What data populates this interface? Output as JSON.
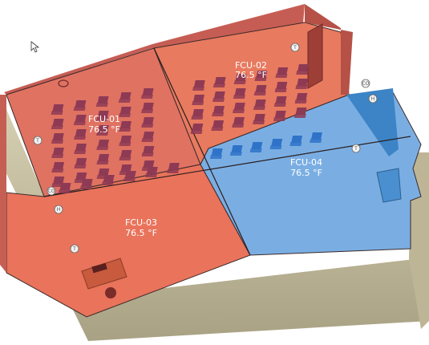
{
  "zones": [
    {
      "id": "fcu-01",
      "name": "FCU-01",
      "temp": "76.5 °F",
      "mode": "heating"
    },
    {
      "id": "fcu-02",
      "name": "FCU-02",
      "temp": "76.5 °F",
      "mode": "heating"
    },
    {
      "id": "fcu-03",
      "name": "FCU-03",
      "temp": "76.5 °F",
      "mode": "heating"
    },
    {
      "id": "fcu-04",
      "name": "FCU-04",
      "temp": "76.5 °F",
      "mode": "cooling"
    }
  ],
  "sensors": {
    "thermostat": "T",
    "humidity": "H",
    "co2": "CO"
  },
  "colors": {
    "heating": "#e9735b",
    "heating_dark": "#b94e48",
    "cooling": "#6ea6dd",
    "cooling_dark": "#3f7fc4",
    "chair_red": "#8e3a55",
    "chair_blue": "#2f73c8"
  }
}
